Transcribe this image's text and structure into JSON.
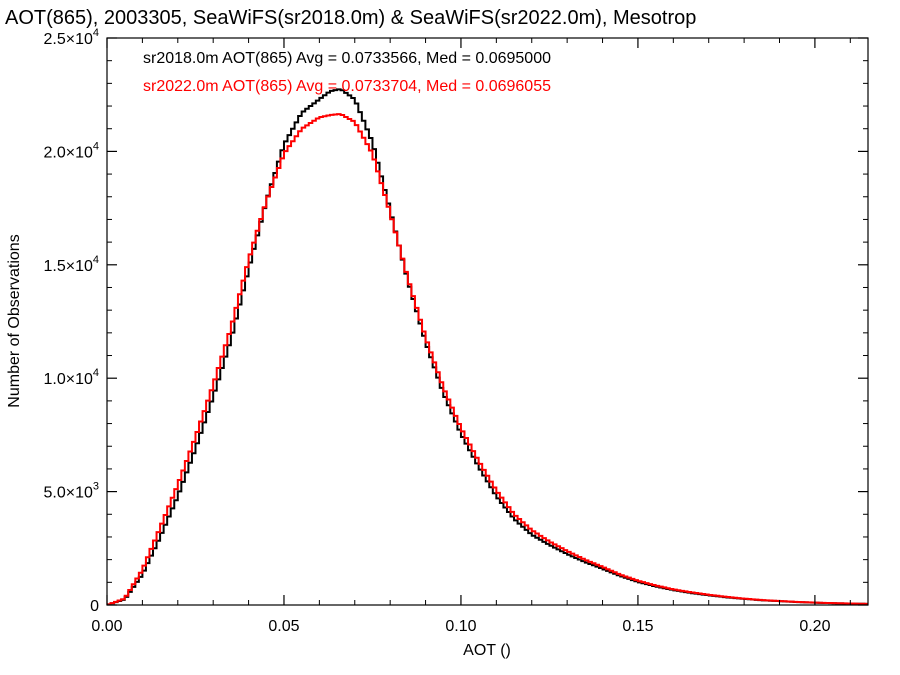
{
  "chart_data": {
    "type": "line",
    "title": "AOT(865), 2003305, SeaWiFS(sr2018.0m) & SeaWiFS(sr2022.0m), Mesotrop",
    "xlabel": "AOT ()",
    "ylabel": "Number of Observations",
    "xlim": [
      0.0,
      0.215
    ],
    "ylim": [
      0,
      25000
    ],
    "step": true,
    "grid": false,
    "xticks": [
      {
        "value": 0.0,
        "label": "0.00"
      },
      {
        "value": 0.05,
        "label": "0.05"
      },
      {
        "value": 0.1,
        "label": "0.10"
      },
      {
        "value": 0.15,
        "label": "0.15"
      },
      {
        "value": 0.2,
        "label": "0.20"
      }
    ],
    "yticks": [
      {
        "value": 0,
        "mantissa": "0",
        "exponent": ""
      },
      {
        "value": 5000,
        "mantissa": "5.0×10",
        "exponent": "3"
      },
      {
        "value": 10000,
        "mantissa": "1.0×10",
        "exponent": "4"
      },
      {
        "value": 15000,
        "mantissa": "1.5×10",
        "exponent": "4"
      },
      {
        "value": 20000,
        "mantissa": "2.0×10",
        "exponent": "4"
      },
      {
        "value": 25000,
        "mantissa": "2.5×10",
        "exponent": "4"
      }
    ],
    "annotations": [
      {
        "text": "sr2018.0m AOT(865) Avg = 0.0733566, Med = 0.0695000",
        "color": "#000000"
      },
      {
        "text": "sr2022.0m AOT(865) Avg = 0.0733704, Med = 0.0696055",
        "color": "#ff0000"
      }
    ],
    "series": [
      {
        "color": "#000000",
        "x": [
          0.0,
          0.005,
          0.01,
          0.015,
          0.02,
          0.025,
          0.03,
          0.035,
          0.04,
          0.045,
          0.05,
          0.055,
          0.06,
          0.063,
          0.066,
          0.07,
          0.075,
          0.08,
          0.085,
          0.09,
          0.095,
          0.1,
          0.105,
          0.11,
          0.115,
          0.12,
          0.125,
          0.13,
          0.135,
          0.14,
          0.145,
          0.15,
          0.155,
          0.16,
          0.165,
          0.17,
          0.175,
          0.18,
          0.185,
          0.19,
          0.195,
          0.2,
          0.205,
          0.21,
          0.215
        ],
        "y": [
          0,
          250,
          1350,
          3000,
          4800,
          6900,
          9200,
          11700,
          14800,
          17800,
          20300,
          21700,
          22300,
          22650,
          22750,
          22300,
          20400,
          17400,
          14300,
          11600,
          9350,
          7550,
          6100,
          4800,
          3800,
          3100,
          2650,
          2250,
          1900,
          1600,
          1280,
          1020,
          820,
          660,
          530,
          430,
          340,
          270,
          210,
          170,
          130,
          100,
          80,
          60,
          50
        ]
      },
      {
        "color": "#ff0000",
        "x": [
          0.0,
          0.005,
          0.01,
          0.015,
          0.02,
          0.025,
          0.03,
          0.035,
          0.04,
          0.045,
          0.05,
          0.055,
          0.06,
          0.063,
          0.066,
          0.07,
          0.075,
          0.08,
          0.085,
          0.09,
          0.095,
          0.1,
          0.105,
          0.11,
          0.115,
          0.12,
          0.125,
          0.13,
          0.135,
          0.14,
          0.145,
          0.15,
          0.155,
          0.16,
          0.165,
          0.17,
          0.175,
          0.18,
          0.185,
          0.19,
          0.195,
          0.2,
          0.205,
          0.21,
          0.215
        ],
        "y": [
          0,
          280,
          1550,
          3400,
          5300,
          7400,
          9700,
          12200,
          15200,
          17800,
          19900,
          21000,
          21500,
          21600,
          21650,
          21300,
          19900,
          17300,
          14400,
          11800,
          9600,
          7800,
          6350,
          5050,
          4000,
          3300,
          2800,
          2380,
          2000,
          1680,
          1340,
          1070,
          860,
          690,
          560,
          450,
          360,
          280,
          220,
          175,
          135,
          105,
          85,
          65,
          50
        ]
      }
    ]
  }
}
